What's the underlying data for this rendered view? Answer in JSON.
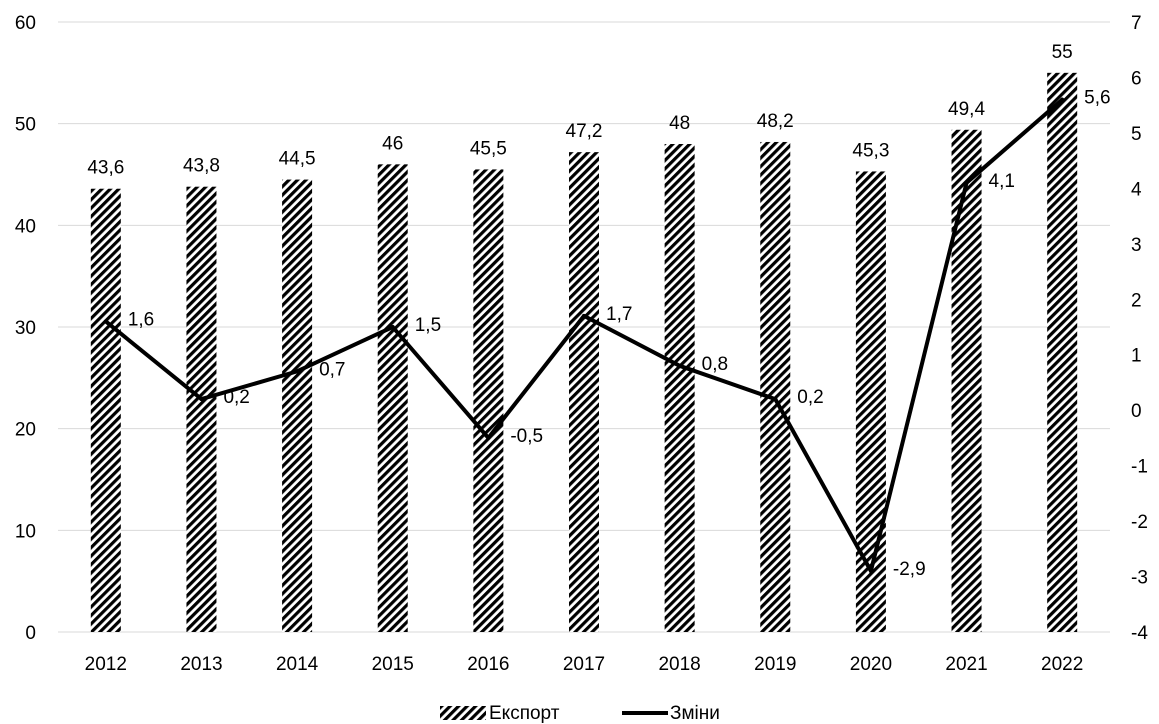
{
  "chart_data": {
    "type": "bar",
    "categories": [
      "2012",
      "2013",
      "2014",
      "2015",
      "2016",
      "2017",
      "2018",
      "2019",
      "2020",
      "2021",
      "2022"
    ],
    "series": [
      {
        "name": "Експорт",
        "type": "bar",
        "axis": "left",
        "values": [
          43.6,
          43.8,
          44.5,
          46,
          45.5,
          47.2,
          48,
          48.2,
          45.3,
          49.4,
          55
        ],
        "labels": [
          "43,6",
          "43,8",
          "44,5",
          "46",
          "45,5",
          "47,2",
          "48",
          "48,2",
          "45,3",
          "49,4",
          "55"
        ]
      },
      {
        "name": "Зміни",
        "type": "line",
        "axis": "right",
        "values": [
          1.6,
          0.2,
          0.7,
          1.5,
          -0.5,
          1.7,
          0.8,
          0.2,
          -2.9,
          4.1,
          5.6
        ],
        "labels": [
          "1,6",
          "0,2",
          "0,7",
          "1,5",
          "-0,5",
          "1,7",
          "0,8",
          "0,2",
          "-2,9",
          "4,1",
          "5,6"
        ]
      }
    ],
    "y_left": {
      "min": 0,
      "max": 60,
      "ticks": [
        "0",
        "10",
        "20",
        "30",
        "40",
        "50",
        "60"
      ],
      "tick_values": [
        0,
        10,
        20,
        30,
        40,
        50,
        60
      ]
    },
    "y_right": {
      "min": -4,
      "max": 7,
      "ticks": [
        "-4",
        "-3",
        "-2",
        "-1",
        "0",
        "1",
        "2",
        "3",
        "4",
        "5",
        "6",
        "7"
      ],
      "tick_values": [
        -4,
        -3,
        -2,
        -1,
        0,
        1,
        2,
        3,
        4,
        5,
        6,
        7
      ]
    },
    "title": "",
    "xlabel": "",
    "ylabel": "",
    "grid": true,
    "legend": "bottom",
    "colors": {
      "bar_pattern": "#000000",
      "line": "#000000",
      "grid": "#d9d9d9"
    }
  }
}
